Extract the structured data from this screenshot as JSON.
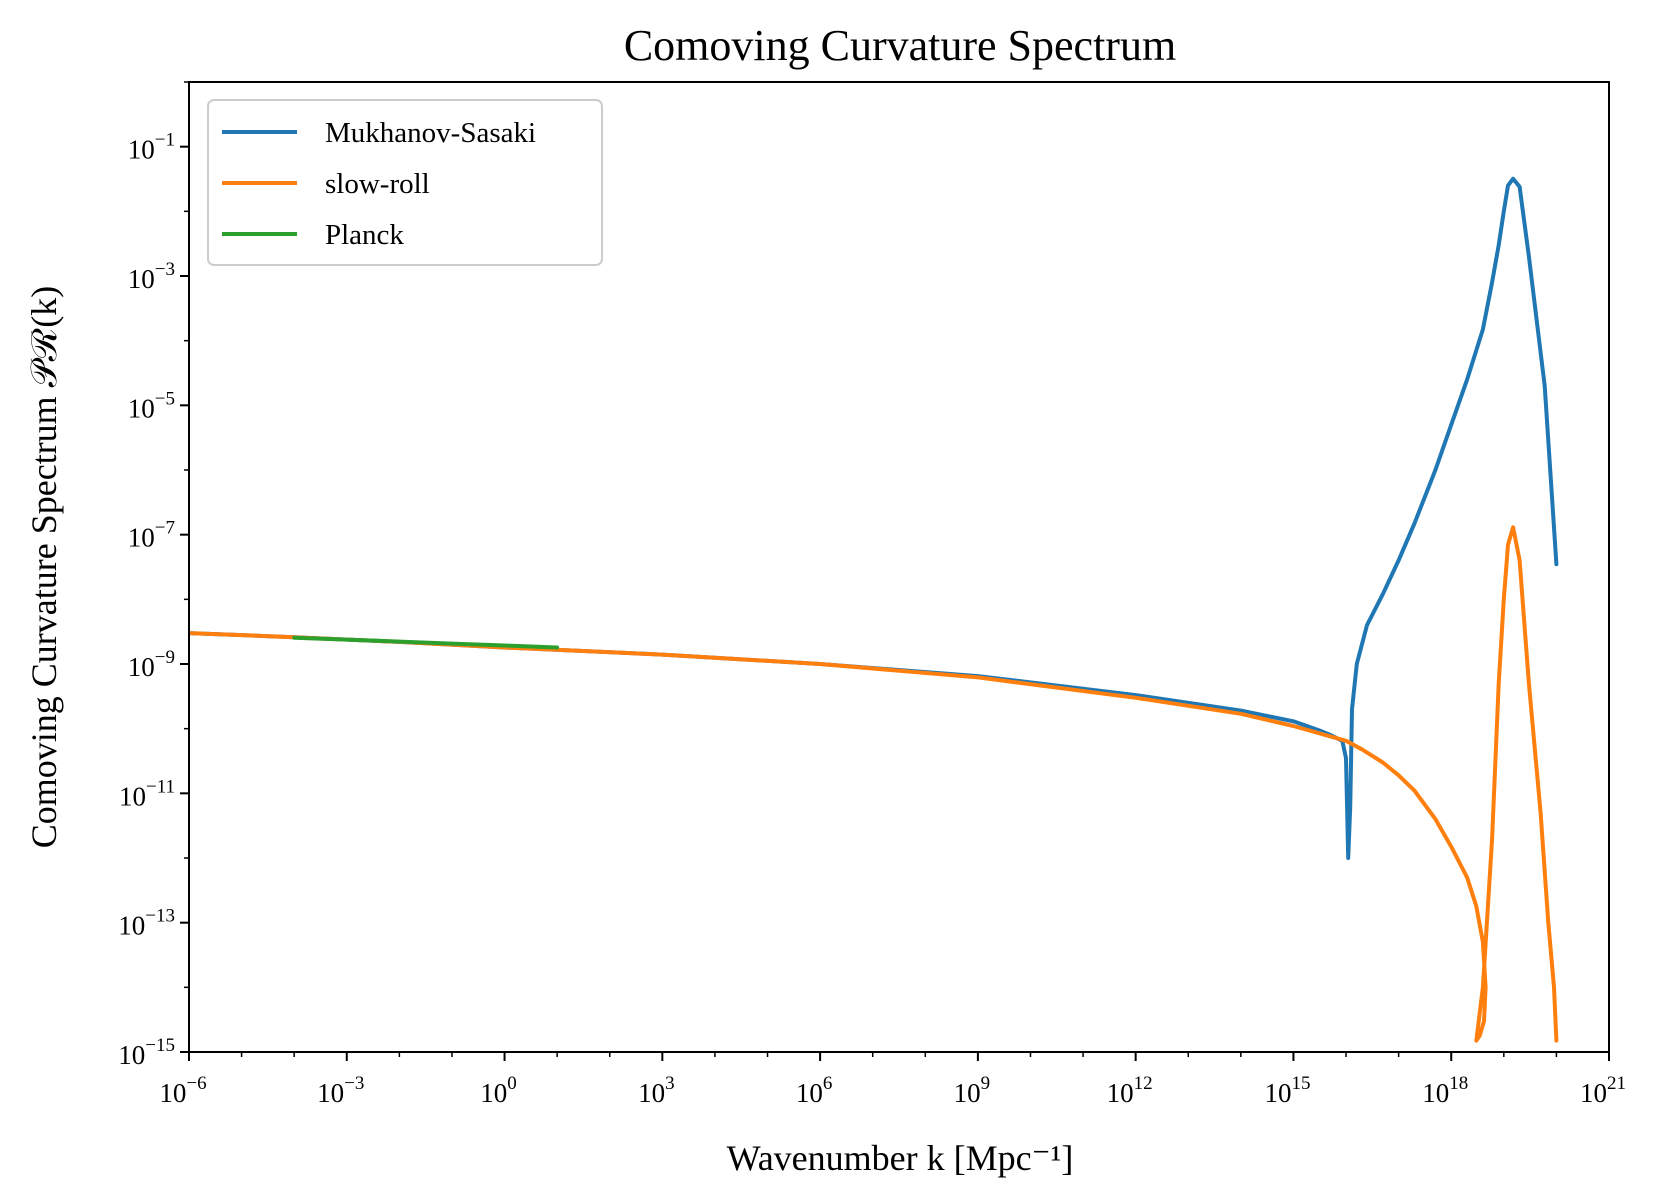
{
  "chart_data": {
    "type": "line",
    "title": "Comoving Curvature Spectrum",
    "xlabel": "Wavenumber k [Mpc⁻¹]",
    "ylabel": "Comoving Curvature Spectrum 𝒫ℛ(k)",
    "xscale": "log",
    "yscale": "log",
    "xlim": [
      1e-06,
      1e+21
    ],
    "ylim": [
      1e-15,
      1.0
    ],
    "x_ticks": [
      {
        "base": "10",
        "exp": "−6"
      },
      {
        "base": "10",
        "exp": "−3"
      },
      {
        "base": "10",
        "exp": "0"
      },
      {
        "base": "10",
        "exp": "3"
      },
      {
        "base": "10",
        "exp": "6"
      },
      {
        "base": "10",
        "exp": "9"
      },
      {
        "base": "10",
        "exp": "12"
      },
      {
        "base": "10",
        "exp": "15"
      },
      {
        "base": "10",
        "exp": "18"
      },
      {
        "base": "10",
        "exp": "21"
      }
    ],
    "x_tick_values": [
      1e-06,
      0.001,
      1.0,
      1000.0,
      1000000.0,
      1000000000.0,
      1000000000000.0,
      1000000000000000.0,
      1e+18,
      1e+21
    ],
    "y_ticks": [
      {
        "base": "10",
        "exp": "−1"
      },
      {
        "base": "10",
        "exp": "−3"
      },
      {
        "base": "10",
        "exp": "−5"
      },
      {
        "base": "10",
        "exp": "−7"
      },
      {
        "base": "10",
        "exp": "−9"
      },
      {
        "base": "10",
        "exp": "−11"
      },
      {
        "base": "10",
        "exp": "−13"
      },
      {
        "base": "10",
        "exp": "−15"
      }
    ],
    "y_tick_values": [
      0.1,
      0.001,
      1e-05,
      1e-07,
      1e-09,
      1e-11,
      1e-13,
      1e-15
    ],
    "grid": false,
    "legend_position": "top-left",
    "series": [
      {
        "name": "Mukhanov-Sasaki",
        "color": "#1f77b4",
        "x": [
          1e-06,
          0.0001,
          0.01,
          1.0,
          1000.0,
          1000000.0,
          1000000000.0,
          1000000000000.0,
          100000000000000.0,
          1000000000000000.0,
          3000000000000000.0,
          5000000000000000.0,
          7000000000000000.0,
          8500000000000000.0,
          1e+16,
          1.1e+16,
          1.2e+16,
          1.3e+16,
          1.6e+16,
          2.5e+16,
          5e+16,
          1e+17,
          2e+17,
          5e+17,
          1e+18,
          2e+18,
          4e+18,
          6e+18,
          8e+18,
          1e+19,
          1.2e+19,
          1.5e+19,
          2e+19,
          3e+19,
          6e+19,
          1e+20
        ],
        "y": [
          3e-09,
          2.6e-09,
          2.2e-09,
          1.8e-09,
          1.4e-09,
          1e-09,
          6.5e-10,
          3.3e-10,
          1.9e-10,
          1.3e-10,
          9.5e-11,
          8e-11,
          7e-11,
          6.5e-11,
          3.5e-11,
          1e-12,
          6e-12,
          2e-10,
          1e-09,
          4e-09,
          1.2e-08,
          4e-08,
          1.5e-07,
          1e-06,
          5e-06,
          2.5e-05,
          0.00015,
          0.0008,
          0.003,
          0.01,
          0.025,
          0.032,
          0.024,
          0.002,
          2e-05,
          3.5e-08
        ]
      },
      {
        "name": "slow-roll",
        "color": "#ff7f0e",
        "x": [
          1e-06,
          0.0001,
          0.01,
          1.0,
          1000.0,
          1000000.0,
          1000000000.0,
          1000000000000.0,
          100000000000000.0,
          1000000000000000.0,
          1e+16,
          2e+16,
          5e+16,
          1e+17,
          2e+17,
          5e+17,
          1e+18,
          2e+18,
          3e+18,
          4e+18,
          4.5e+18,
          4.2e+18,
          3.5e+18,
          3e+18,
          4e+18,
          6e+18,
          8e+18,
          1e+19,
          1.2e+19,
          1.5e+19,
          2e+19,
          3e+19,
          5e+19,
          7e+19,
          9e+19,
          1e+20
        ],
        "y": [
          3e-09,
          2.6e-09,
          2.2e-09,
          1.8e-09,
          1.4e-09,
          1e-09,
          6.2e-10,
          3e-10,
          1.7e-10,
          1.1e-10,
          6.5e-11,
          4.8e-11,
          3e-11,
          1.9e-11,
          1.1e-11,
          4e-12,
          1.5e-12,
          5e-13,
          1.8e-13,
          5e-14,
          1e-14,
          3e-15,
          1.8e-15,
          1.5e-15,
          1e-14,
          2e-12,
          5e-10,
          1e-08,
          7e-08,
          1.3e-07,
          4e-08,
          5e-10,
          5e-12,
          1e-13,
          1e-14,
          1.5e-15
        ]
      },
      {
        "name": "Planck",
        "color": "#2ca02c",
        "x": [
          0.0001,
          0.001,
          0.01,
          0.1,
          1.0,
          10.0
        ],
        "y": [
          2.55e-09,
          2.38e-09,
          2.22e-09,
          2.07e-09,
          1.93e-09,
          1.8e-09
        ]
      }
    ]
  }
}
